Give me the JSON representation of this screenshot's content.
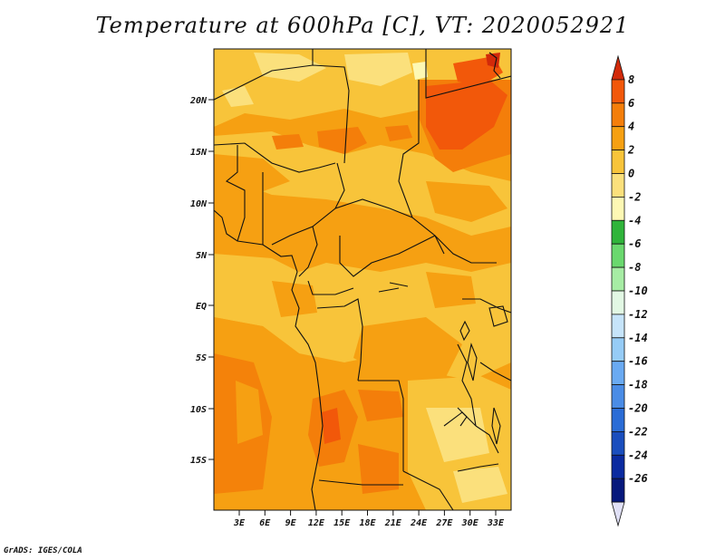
{
  "title": "Temperature at 600hPa [C], VT: 2020052921",
  "credit": "GrADS: IGES/COLA",
  "map": {
    "lat_labels": [
      "20N",
      "15N",
      "10N",
      "5N",
      "EQ",
      "5S",
      "10S",
      "15S"
    ],
    "lon_labels": [
      "3E",
      "6E",
      "9E",
      "12E",
      "15E",
      "18E",
      "21E",
      "24E",
      "27E",
      "30E",
      "33E"
    ]
  },
  "colorbar": {
    "labels": [
      "8",
      "6",
      "4",
      "2",
      "0",
      "-2",
      "-4",
      "-6",
      "-8",
      "-10",
      "-12",
      "-14",
      "-16",
      "-18",
      "-20",
      "-22",
      "-24",
      "-26"
    ],
    "colors": [
      "#d22a0a",
      "#f2580a",
      "#f47e0a",
      "#f6a012",
      "#f8c43a",
      "#fbe07c",
      "#fdf8b4",
      "#2fb43a",
      "#6ad86e",
      "#a6eca4",
      "#e2f8e4",
      "#c6e4fa",
      "#96ccf6",
      "#6aaaf2",
      "#4a8ce6",
      "#2a6cd6",
      "#1a4ebe",
      "#0a2aa0",
      "#06187c",
      "#e0e0f6"
    ]
  }
}
